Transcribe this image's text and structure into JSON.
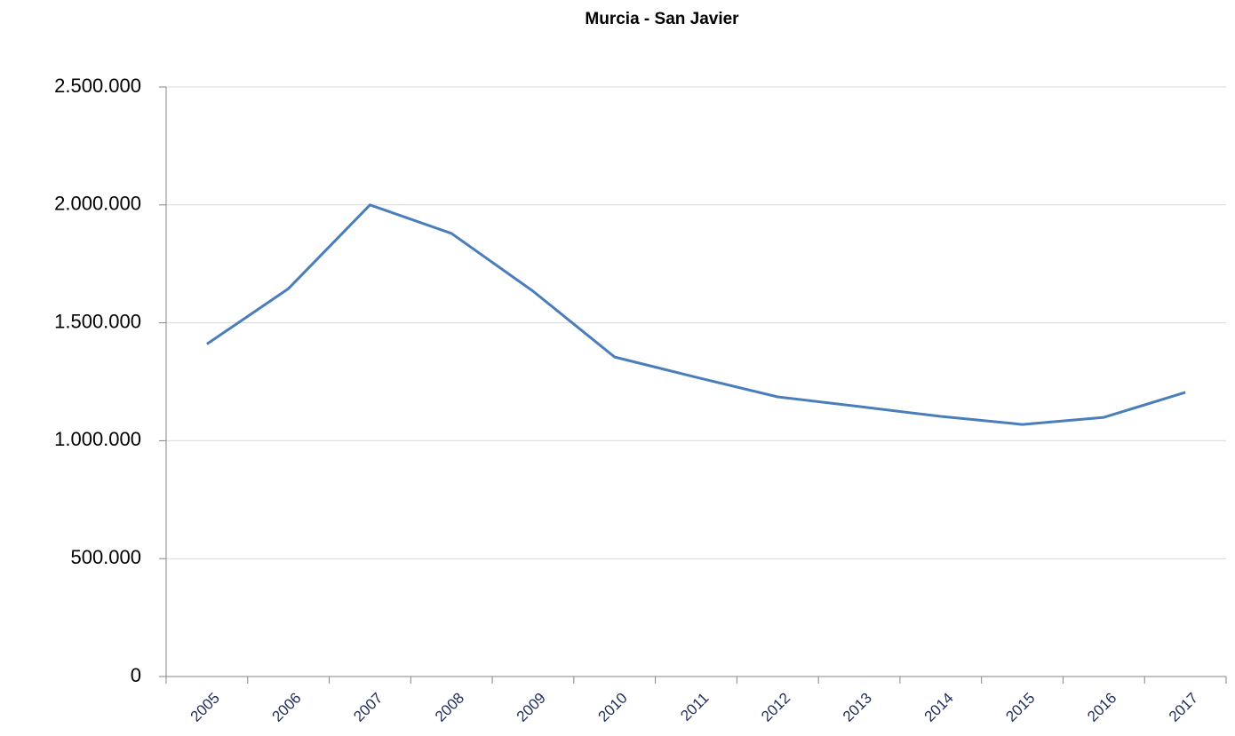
{
  "chart_data": {
    "type": "line",
    "title": "Murcia - San Javier",
    "categories": [
      "2005",
      "2006",
      "2007",
      "2008",
      "2009",
      "2010",
      "2011",
      "2012",
      "2013",
      "2014",
      "2015",
      "2016",
      "2017"
    ],
    "series": [
      {
        "name": "Murcia - San Javier",
        "color": "#4a7ebb",
        "values": [
          1410000,
          1645000,
          2000000,
          1879000,
          1634000,
          1355000,
          1269000,
          1186000,
          1145000,
          1103000,
          1069000,
          1099000,
          1205000
        ]
      }
    ],
    "ylim": [
      0,
      2500000
    ],
    "yticks": [
      0,
      {
        "value": 500000,
        "label": "500.000"
      },
      {
        "value": 1000000,
        "label": "1.000.000"
      },
      {
        "value": 1500000,
        "label": "1.500.000"
      },
      {
        "value": 2000000,
        "label": "2.000.000"
      },
      {
        "value": 2500000,
        "label": "2.500.000"
      }
    ],
    "grid": true
  }
}
